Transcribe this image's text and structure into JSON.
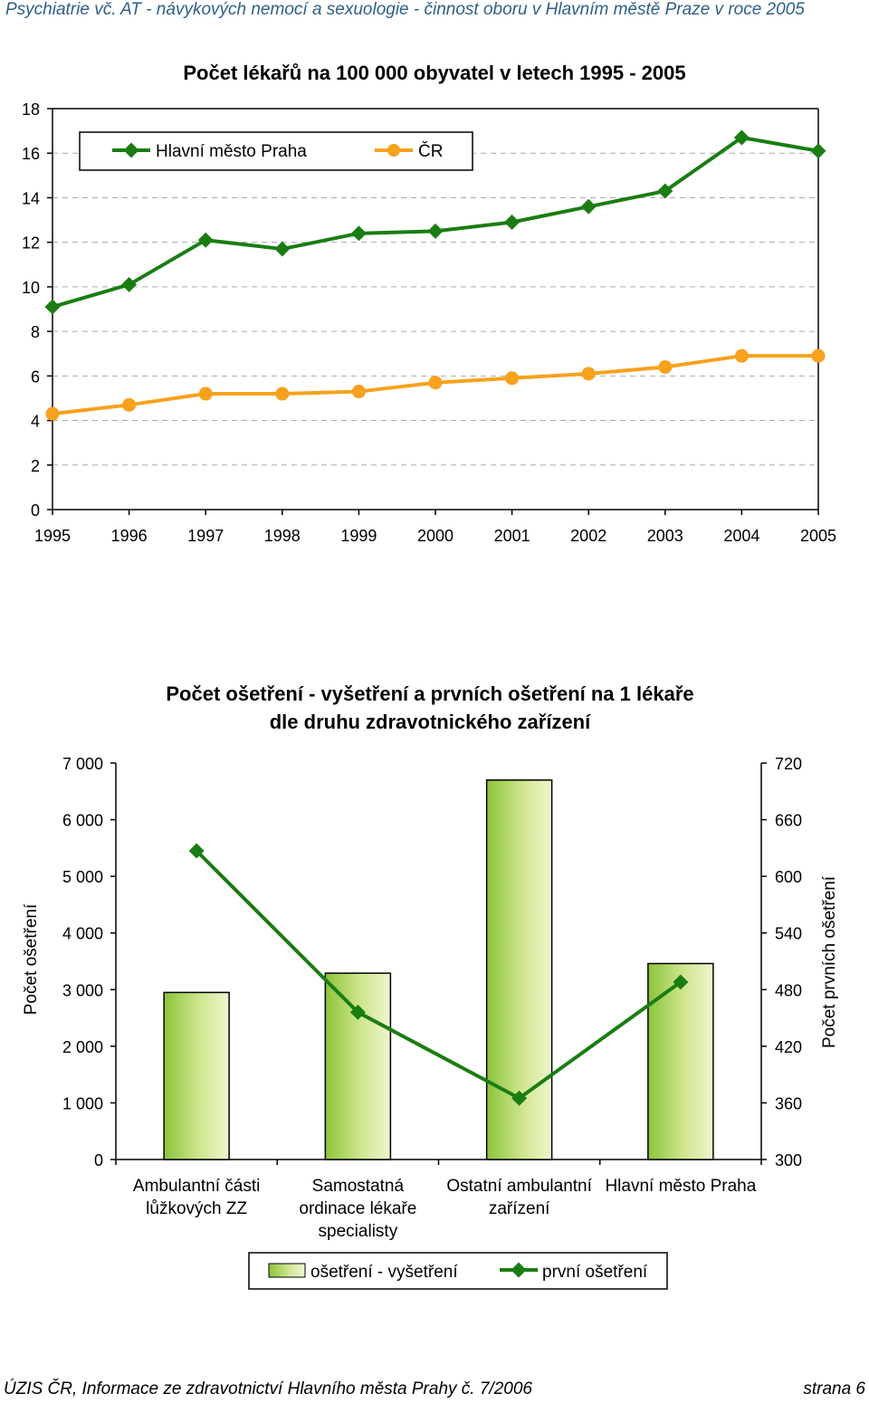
{
  "page": {
    "header": "Psychiatrie vč. AT - návykových nemocí a sexuologie - činnost oboru v Hlavním městě Praze v roce 2005",
    "footer_left": "ÚZIS ČR, Informace ze zdravotnictví Hlavního města Prahy č. 7/2006",
    "footer_right": "strana 6"
  },
  "colors": {
    "praha": "#1a7d12",
    "cr": "#f7a11d",
    "bar_dark": "#8cc43a",
    "bar_light": "#eef6cf",
    "grid": "#aaaaaa"
  },
  "chart_data": [
    {
      "type": "line",
      "title": "Počet lékařů na 100 000 obyvatel v letech 1995 - 2005",
      "x": [
        "1995",
        "1996",
        "1997",
        "1998",
        "1999",
        "2000",
        "2001",
        "2002",
        "2003",
        "2004",
        "2005"
      ],
      "ylim": [
        0,
        18
      ],
      "yticks": [
        "0",
        "2",
        "4",
        "6",
        "8",
        "10",
        "12",
        "14",
        "16",
        "18"
      ],
      "grid": true,
      "legend_position": "top-left",
      "series": [
        {
          "name": "Hlavní město Praha",
          "marker": "diamond",
          "values": [
            9.1,
            10.1,
            12.1,
            11.7,
            12.4,
            12.5,
            12.9,
            13.6,
            14.3,
            16.7,
            16.1
          ]
        },
        {
          "name": "ČR",
          "marker": "circle",
          "values": [
            4.3,
            4.7,
            5.2,
            5.2,
            5.3,
            5.7,
            5.9,
            6.1,
            6.4,
            6.9,
            6.9
          ]
        }
      ]
    },
    {
      "type": "bar",
      "title_line1": "Počet ošetření - vyšetření a prvních ošetření na 1 lékaře",
      "title_line2": "dle druhu zdravotnického zařízení",
      "categories": [
        [
          "Ambulantní části",
          "lůžkových ZZ"
        ],
        [
          "Samostatná",
          "ordinace lékaře",
          "specialisty"
        ],
        [
          "Ostatní ambulantní",
          "zařízení"
        ],
        [
          "Hlavní město Praha"
        ]
      ],
      "ylabel": "Počet ošetření",
      "y2label": "Počet prvních ošetření",
      "ylim": [
        0,
        7000
      ],
      "yticks": [
        "0",
        "1 000",
        "2 000",
        "3 000",
        "4 000",
        "5 000",
        "6 000",
        "7 000"
      ],
      "y2lim": [
        300,
        720
      ],
      "y2ticks": [
        "300",
        "360",
        "420",
        "480",
        "540",
        "600",
        "660",
        "720"
      ],
      "legend_position": "bottom",
      "series": [
        {
          "name": "ošetření - vyšetření",
          "type": "bar",
          "axis": "left",
          "values": [
            2950,
            3290,
            6700,
            3460
          ]
        },
        {
          "name": "první ošetření",
          "type": "line",
          "marker": "diamond",
          "axis": "right",
          "values": [
            627,
            456,
            365,
            488
          ]
        }
      ]
    }
  ]
}
